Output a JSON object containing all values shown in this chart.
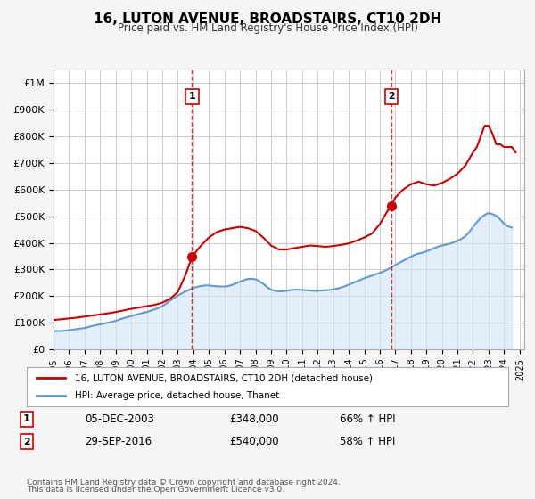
{
  "title": "16, LUTON AVENUE, BROADSTAIRS, CT10 2DH",
  "subtitle": "Price paid vs. HM Land Registry's House Price Index (HPI)",
  "xlabel": "",
  "ylabel": "",
  "ylim": [
    0,
    1050000
  ],
  "xlim_start": 1995.0,
  "xlim_end": 2025.3,
  "yticks": [
    0,
    100000,
    200000,
    300000,
    400000,
    500000,
    600000,
    700000,
    800000,
    900000,
    1000000
  ],
  "ytick_labels": [
    "£0",
    "£100K",
    "£200K",
    "£300K",
    "£400K",
    "£500K",
    "£600K",
    "£700K",
    "£800K",
    "£900K",
    "£1M"
  ],
  "xticks": [
    1995,
    1996,
    1997,
    1998,
    1999,
    2000,
    2001,
    2002,
    2003,
    2004,
    2005,
    2006,
    2007,
    2008,
    2009,
    2010,
    2011,
    2012,
    2013,
    2014,
    2015,
    2016,
    2017,
    2018,
    2019,
    2020,
    2021,
    2022,
    2023,
    2024,
    2025
  ],
  "marker1_x": 2003.92,
  "marker1_y": 348000,
  "marker2_x": 2016.75,
  "marker2_y": 540000,
  "marker1_label": "1",
  "marker2_label": "2",
  "vline1_x": 2003.92,
  "vline2_x": 2016.75,
  "legend_entry1": "16, LUTON AVENUE, BROADSTAIRS, CT10 2DH (detached house)",
  "legend_entry2": "HPI: Average price, detached house, Thanet",
  "table_row1_num": "1",
  "table_row1_date": "05-DEC-2003",
  "table_row1_price": "£348,000",
  "table_row1_hpi": "66% ↑ HPI",
  "table_row2_num": "2",
  "table_row2_date": "29-SEP-2016",
  "table_row2_price": "£540,000",
  "table_row2_hpi": "58% ↑ HPI",
  "footer1": "Contains HM Land Registry data © Crown copyright and database right 2024.",
  "footer2": "This data is licensed under the Open Government Licence v3.0.",
  "line_color_red": "#cc0000",
  "line_color_blue": "#6699cc",
  "fill_color_blue": "#d0e4f7",
  "vline_color": "#cc0000",
  "background_color": "#f5f5f5",
  "plot_bg_color": "#ffffff",
  "grid_color": "#cccccc",
  "hpi_x": [
    1995.0,
    1995.25,
    1995.5,
    1995.75,
    1996.0,
    1996.25,
    1996.5,
    1996.75,
    1997.0,
    1997.25,
    1997.5,
    1997.75,
    1998.0,
    1998.25,
    1998.5,
    1998.75,
    1999.0,
    1999.25,
    1999.5,
    1999.75,
    2000.0,
    2000.25,
    2000.5,
    2000.75,
    2001.0,
    2001.25,
    2001.5,
    2001.75,
    2002.0,
    2002.25,
    2002.5,
    2002.75,
    2003.0,
    2003.25,
    2003.5,
    2003.75,
    2004.0,
    2004.25,
    2004.5,
    2004.75,
    2005.0,
    2005.25,
    2005.5,
    2005.75,
    2006.0,
    2006.25,
    2006.5,
    2006.75,
    2007.0,
    2007.25,
    2007.5,
    2007.75,
    2008.0,
    2008.25,
    2008.5,
    2008.75,
    2009.0,
    2009.25,
    2009.5,
    2009.75,
    2010.0,
    2010.25,
    2010.5,
    2010.75,
    2011.0,
    2011.25,
    2011.5,
    2011.75,
    2012.0,
    2012.25,
    2012.5,
    2012.75,
    2013.0,
    2013.25,
    2013.5,
    2013.75,
    2014.0,
    2014.25,
    2014.5,
    2014.75,
    2015.0,
    2015.25,
    2015.5,
    2015.75,
    2016.0,
    2016.25,
    2016.5,
    2016.75,
    2017.0,
    2017.25,
    2017.5,
    2017.75,
    2018.0,
    2018.25,
    2018.5,
    2018.75,
    2019.0,
    2019.25,
    2019.5,
    2019.75,
    2020.0,
    2020.25,
    2020.5,
    2020.75,
    2021.0,
    2021.25,
    2021.5,
    2021.75,
    2022.0,
    2022.25,
    2022.5,
    2022.75,
    2023.0,
    2023.25,
    2023.5,
    2023.75,
    2024.0,
    2024.25,
    2024.5
  ],
  "hpi_y": [
    68000,
    68500,
    69000,
    70000,
    72000,
    74000,
    76000,
    78000,
    80000,
    84000,
    88000,
    91000,
    94000,
    97000,
    100000,
    103000,
    107000,
    112000,
    117000,
    121000,
    125000,
    129000,
    133000,
    137000,
    140000,
    145000,
    150000,
    155000,
    162000,
    172000,
    183000,
    193000,
    202000,
    210000,
    218000,
    224000,
    230000,
    235000,
    238000,
    240000,
    240000,
    238000,
    237000,
    236000,
    236000,
    238000,
    242000,
    248000,
    254000,
    260000,
    264000,
    265000,
    263000,
    256000,
    246000,
    234000,
    224000,
    220000,
    218000,
    218000,
    220000,
    222000,
    224000,
    224000,
    223000,
    222000,
    221000,
    220000,
    220000,
    221000,
    222000,
    223000,
    225000,
    228000,
    232000,
    237000,
    243000,
    249000,
    255000,
    261000,
    267000,
    272000,
    277000,
    282000,
    287000,
    293000,
    300000,
    308000,
    317000,
    325000,
    333000,
    340000,
    348000,
    355000,
    360000,
    363000,
    368000,
    374000,
    380000,
    386000,
    390000,
    393000,
    397000,
    402000,
    408000,
    415000,
    425000,
    440000,
    460000,
    478000,
    494000,
    505000,
    512000,
    508000,
    502000,
    488000,
    472000,
    462000,
    458000
  ],
  "price_x": [
    1995.0,
    1995.5,
    1996.0,
    1996.5,
    1997.0,
    1997.5,
    1998.0,
    1998.5,
    1999.0,
    1999.5,
    2000.0,
    2000.5,
    2001.0,
    2001.5,
    2002.0,
    2002.5,
    2003.0,
    2003.5,
    2003.92,
    2004.5,
    2005.0,
    2005.5,
    2006.0,
    2006.5,
    2007.0,
    2007.5,
    2008.0,
    2008.5,
    2009.0,
    2009.5,
    2010.0,
    2010.5,
    2011.0,
    2011.5,
    2012.0,
    2012.5,
    2013.0,
    2013.5,
    2014.0,
    2014.5,
    2015.0,
    2015.5,
    2016.0,
    2016.5,
    2016.75,
    2017.0,
    2017.5,
    2018.0,
    2018.5,
    2019.0,
    2019.5,
    2020.0,
    2020.5,
    2021.0,
    2021.5,
    2022.0,
    2022.25,
    2022.5,
    2022.75,
    2023.0,
    2023.25,
    2023.5,
    2023.75,
    2024.0,
    2024.25,
    2024.5,
    2024.75
  ],
  "price_y": [
    110000,
    113000,
    116000,
    119000,
    123000,
    127000,
    131000,
    135000,
    140000,
    146000,
    152000,
    157000,
    162000,
    167000,
    175000,
    190000,
    215000,
    280000,
    348000,
    390000,
    420000,
    440000,
    450000,
    455000,
    460000,
    455000,
    445000,
    420000,
    390000,
    375000,
    375000,
    380000,
    385000,
    390000,
    388000,
    385000,
    388000,
    392000,
    398000,
    408000,
    420000,
    435000,
    470000,
    520000,
    540000,
    570000,
    600000,
    620000,
    630000,
    620000,
    615000,
    625000,
    640000,
    660000,
    690000,
    740000,
    760000,
    800000,
    840000,
    840000,
    810000,
    770000,
    770000,
    760000,
    760000,
    760000,
    740000
  ]
}
